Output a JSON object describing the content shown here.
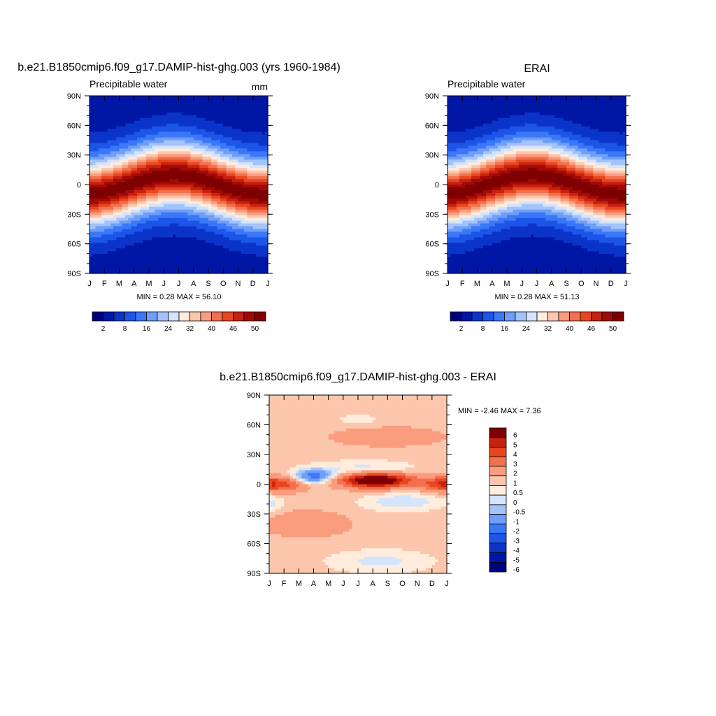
{
  "colors": {
    "seq": [
      "#00007f",
      "#0016a5",
      "#0b35c8",
      "#1d55e8",
      "#3b78f7",
      "#6f9ef9",
      "#a3c3fa",
      "#d3e4fc",
      "#ffecdc",
      "#fcc6ad",
      "#f99d7e",
      "#f3704f",
      "#e9461e",
      "#c52211",
      "#a20a05",
      "#7f0000"
    ],
    "div": [
      "#00007f",
      "#0016a5",
      "#0b35c8",
      "#1d55e8",
      "#3b78f7",
      "#6f9ef9",
      "#a3c3fa",
      "#d3e4fc",
      "#ffecdc",
      "#fcc6ad",
      "#f99d7e",
      "#f3704f",
      "#e9461e",
      "#c52211",
      "#7f0000"
    ]
  },
  "chart_data": [
    {
      "type": "heatmap",
      "title": "b.e21.B1850cmip6.f09_g17.DAMIP-hist-ghg.003 (yrs 1960-1984)",
      "left_label": "Precipitable water",
      "units": "mm",
      "x_tick_labels": [
        "J",
        "F",
        "M",
        "A",
        "M",
        "J",
        "J",
        "A",
        "S",
        "O",
        "N",
        "D",
        "J"
      ],
      "y_tick_labels": [
        "90N",
        "60N",
        "30N",
        "0",
        "30S",
        "60S",
        "90S"
      ],
      "xlim": [
        0,
        12
      ],
      "ylim": [
        -90,
        90
      ],
      "min_max_text": "MIN =   0.28 MAX =  56.10",
      "colorbar_labels": [
        "2",
        "8",
        "16",
        "24",
        "32",
        "40",
        "46",
        "50"
      ],
      "field": {
        "kind": "pw",
        "min": 0.28,
        "max": 56.1,
        "amp": 20,
        "yshift": 0
      }
    },
    {
      "type": "heatmap",
      "title": "ERAI",
      "left_label": "Precipitable water",
      "units": "",
      "x_tick_labels": [
        "J",
        "F",
        "M",
        "A",
        "M",
        "J",
        "J",
        "A",
        "S",
        "O",
        "N",
        "D",
        "J"
      ],
      "y_tick_labels": [
        "90N",
        "60N",
        "30N",
        "0",
        "30S",
        "60S",
        "90S"
      ],
      "xlim": [
        0,
        12
      ],
      "ylim": [
        -90,
        90
      ],
      "min_max_text": "MIN =   0.28 MAX =  51.13",
      "colorbar_labels": [
        "2",
        "8",
        "16",
        "24",
        "32",
        "40",
        "46",
        "50"
      ],
      "field": {
        "kind": "pw",
        "min": 0.28,
        "max": 51.13,
        "amp": 18,
        "yshift": 0
      }
    },
    {
      "type": "heatmap",
      "title": "b.e21.B1850cmip6.f09_g17.DAMIP-hist-ghg.003 - ERAI",
      "x_tick_labels": [
        "J",
        "F",
        "M",
        "A",
        "M",
        "J",
        "J",
        "A",
        "S",
        "O",
        "N",
        "D",
        "J"
      ],
      "y_tick_labels": [
        "90N",
        "60N",
        "30N",
        "0",
        "30S",
        "60S",
        "90S"
      ],
      "xlim": [
        0,
        12
      ],
      "ylim": [
        -90,
        90
      ],
      "min_max_text": "MIN =  -2.46 MAX =   7.36",
      "colorbar_labels": [
        "6",
        "5",
        "4",
        "3",
        "2",
        "1",
        "0.5",
        "0",
        "-0.5",
        "-1",
        "-2",
        "-3",
        "-4",
        "-5",
        "-6"
      ],
      "field": {
        "kind": "diff",
        "min": -2.46,
        "max": 7.36
      }
    }
  ]
}
